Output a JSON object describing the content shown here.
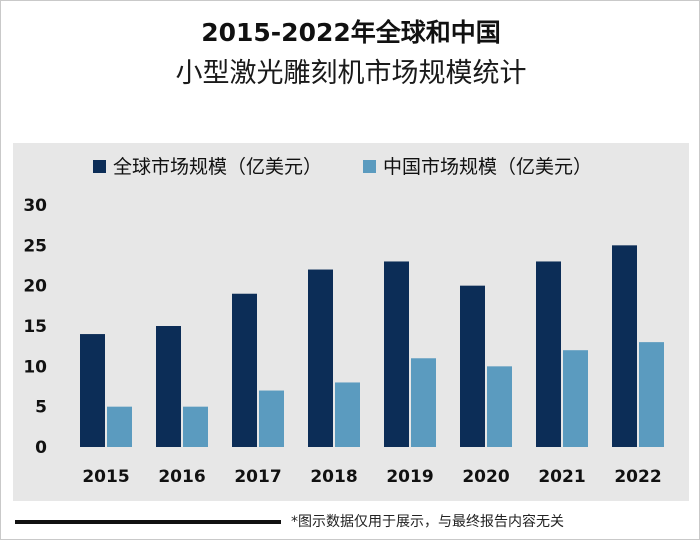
{
  "title": {
    "line1": "2015-2022年全球和中国",
    "line2": "小型激光雕刻机市场规模统计"
  },
  "footer": {
    "note": "*图示数据仅用于展示，与最终报告内容无关"
  },
  "colors": {
    "global": "#0c2d57",
    "china": "#5b9bbf",
    "plot_bg": "#e7e7e7",
    "text": "#111111"
  },
  "chart_data": {
    "type": "bar",
    "categories": [
      "2015",
      "2016",
      "2017",
      "2018",
      "2019",
      "2020",
      "2021",
      "2022"
    ],
    "series": [
      {
        "name": "全球市场规模（亿美元）",
        "values": [
          14,
          15,
          19,
          22,
          23,
          20,
          23,
          25
        ]
      },
      {
        "name": "中国市场规模（亿美元）",
        "values": [
          5,
          5,
          7,
          8,
          11,
          10,
          12,
          13
        ]
      }
    ],
    "ylim": [
      0,
      30
    ],
    "yticks": [
      0,
      5,
      10,
      15,
      20,
      25,
      30
    ],
    "grid": false,
    "legend": "top-center"
  }
}
